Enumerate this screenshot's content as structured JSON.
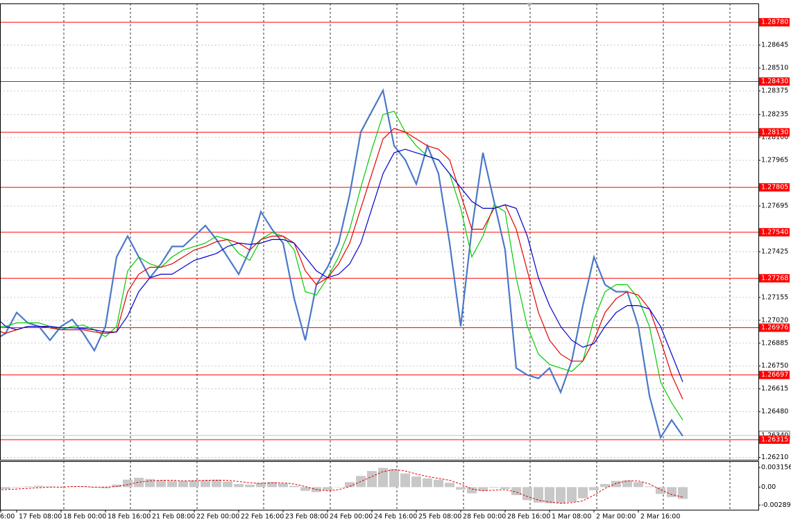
{
  "chart_data": [
    {
      "type": "line",
      "categories": [
        "6:00",
        null,
        "17 Feb 08:00",
        null,
        null,
        null,
        "18 Feb 00:00",
        null,
        null,
        null,
        "18 Feb 16:00",
        null,
        null,
        null,
        "21 Feb 08:00",
        null,
        null,
        null,
        "22 Feb 00:00",
        null,
        null,
        null,
        "22 Feb 16:00",
        null,
        null,
        null,
        "23 Feb 08:00",
        null,
        null,
        null,
        "24 Feb 00:00",
        null,
        null,
        null,
        "24 Feb 16:00",
        null,
        null,
        null,
        "25 Feb 08:00",
        null,
        null,
        null,
        "28 Feb 00:00",
        null,
        null,
        null,
        "28 Feb 16:00",
        null,
        null,
        null,
        "1 Mar 08:00",
        null,
        null,
        null,
        "2 Mar 00:00",
        null,
        null,
        null,
        "2 Mar 16:00",
        null,
        null,
        null,
        null
      ],
      "series": [
        {
          "color": "#4a78c8",
          "values": [
            1.26902,
            1.26943,
            1.27066,
            1.27005,
            1.26984,
            1.26902,
            1.26984,
            1.27025,
            1.26943,
            1.26841,
            1.26984,
            1.27394,
            1.27517,
            1.27394,
            1.27271,
            1.27353,
            1.27456,
            1.27456,
            1.27517,
            1.27579,
            1.27497,
            1.27394,
            1.27292,
            1.27435,
            1.27661,
            1.27558,
            1.27476,
            1.27148,
            1.26902,
            1.2723,
            1.27333,
            1.27476,
            1.27763,
            1.28132,
            1.28255,
            1.28378,
            1.2805,
            1.27968,
            1.27825,
            1.2805,
            1.27886,
            1.27476,
            1.26984,
            1.27558,
            1.28009,
            1.27722,
            1.27435,
            1.26738,
            1.26697,
            1.26677,
            1.26738,
            1.26595,
            1.26779,
            1.27107,
            1.27394,
            1.2723,
            1.27189,
            1.27189,
            1.26984,
            1.26574,
            1.26328,
            1.26431,
            1.26336
          ]
        },
        {
          "color": "#00cc00",
          "values": [
            1.26984,
            1.26984,
            1.27005,
            1.27005,
            1.27005,
            1.26984,
            1.26964,
            1.26984,
            1.26992,
            1.26964,
            1.26923,
            1.26984,
            1.27312,
            1.27394,
            1.27353,
            1.27333,
            1.27394,
            1.27435,
            1.27456,
            1.27476,
            1.27517,
            1.27497,
            1.27415,
            1.27374,
            1.27497,
            1.27538,
            1.27517,
            1.27435,
            1.27189,
            1.27169,
            1.27271,
            1.27394,
            1.27558,
            1.27804,
            1.2803,
            1.28235,
            1.28255,
            1.28132,
            1.2805,
            1.27989,
            1.27968,
            1.27886,
            1.27681,
            1.27394,
            1.27517,
            1.27702,
            1.27661,
            1.27271,
            1.26984,
            1.2682,
            1.26759,
            1.26738,
            1.26718,
            1.26779,
            1.27025,
            1.27189,
            1.2723,
            1.2723,
            1.27148,
            1.26984,
            1.26656,
            1.26533,
            1.26431
          ]
        },
        {
          "color": "#e00000",
          "values": [
            1.26964,
            1.26943,
            1.26964,
            1.26984,
            1.26984,
            1.26976,
            1.26964,
            1.26964,
            1.26964,
            1.26951,
            1.26943,
            1.26951,
            1.27189,
            1.27292,
            1.27333,
            1.27333,
            1.27353,
            1.27394,
            1.27435,
            1.27456,
            1.27484,
            1.27497,
            1.27476,
            1.27435,
            1.27497,
            1.27517,
            1.27517,
            1.27476,
            1.27312,
            1.2723,
            1.27271,
            1.27353,
            1.27476,
            1.27681,
            1.27886,
            1.28091,
            1.28153,
            1.28132,
            1.28091,
            1.2805,
            1.2803,
            1.27968,
            1.27763,
            1.27558,
            1.27558,
            1.27681,
            1.27702,
            1.27558,
            1.27312,
            1.27066,
            1.26902,
            1.2682,
            1.26779,
            1.26779,
            1.26902,
            1.27066,
            1.27148,
            1.27189,
            1.27169,
            1.27087,
            1.26902,
            1.26697,
            1.26554
          ]
        },
        {
          "color": "#0000cc",
          "values": [
            1.27046,
            1.26984,
            1.26964,
            1.26984,
            1.26984,
            1.26984,
            1.26976,
            1.26976,
            1.26972,
            1.26964,
            1.26951,
            1.26951,
            1.27046,
            1.27189,
            1.27271,
            1.27292,
            1.27292,
            1.27333,
            1.27374,
            1.27394,
            1.27415,
            1.27456,
            1.27476,
            1.27468,
            1.27476,
            1.27497,
            1.27497,
            1.27476,
            1.27394,
            1.27312,
            1.27271,
            1.27292,
            1.27353,
            1.27476,
            1.27681,
            1.27886,
            1.28009,
            1.2803,
            1.28009,
            1.27989,
            1.27968,
            1.27886,
            1.27804,
            1.27722,
            1.27681,
            1.27681,
            1.27702,
            1.27681,
            1.27517,
            1.27271,
            1.27107,
            1.26984,
            1.26902,
            1.26861,
            1.26882,
            1.26984,
            1.27066,
            1.27107,
            1.27107,
            1.27087,
            1.26984,
            1.2682,
            1.26656
          ]
        }
      ],
      "ylim": [
        1.26196,
        1.28891
      ],
      "yticks": [
        1.28645,
        {
          "value": 1.2851,
          "label": "1.28510"
        },
        1.28375,
        1.28235,
        {
          "value": 1.281,
          "label": "1.28100"
        },
        1.27965,
        1.27695,
        1.27425,
        1.27155,
        {
          "value": 1.2702,
          "label": "1.27020"
        },
        1.26885,
        {
          "value": 1.2675,
          "label": "1.26750"
        },
        1.26615,
        {
          "value": 1.2648,
          "label": "1.26480"
        },
        {
          "value": 1.2621,
          "label": "1.26210"
        }
      ],
      "grid": true,
      "current_price": {
        "value": 1.2634,
        "label": "1.26340"
      },
      "levels": {
        "color": "#ff0000",
        "values": [
          1.2878,
          1.2843,
          1.2813,
          1.27805,
          1.2754,
          1.27268,
          1.26976,
          1.26697,
          1.26315
        ],
        "value_labels": [
          "1.28780",
          "1.28430",
          "1.28130",
          "1.27805",
          "1.27540",
          "1.27268",
          "1.26976",
          "1.26697",
          "1.26315"
        ]
      }
    },
    {
      "type": "bar",
      "values": [
        -0.0004,
        -0.0003,
        -0.0001,
        0.0001,
        0.0002,
        0.0001,
        0,
        0.0001,
        0.0001,
        -0.0001,
        -0.0002,
        0.0004,
        0.0012,
        0.0015,
        0.0013,
        0.0011,
        0.001,
        0.001,
        0.0011,
        0.0011,
        0.0012,
        0.0009,
        0.0005,
        0.0004,
        0.0007,
        0.0008,
        0.0006,
        0.0002,
        -0.0006,
        -0.0008,
        -0.0005,
        0,
        0.0008,
        0.0018,
        0.0026,
        0.0031,
        0.0029,
        0.0022,
        0.0017,
        0.0014,
        0.0012,
        0.0007,
        -0.0004,
        -0.001,
        -0.0006,
        -0.0001,
        -0.0003,
        -0.0013,
        -0.0021,
        -0.0025,
        -0.0026,
        -0.0026,
        -0.0024,
        -0.0018,
        -0.0005,
        0.0005,
        0.001,
        0.0011,
        0.0008,
        0.0001,
        -0.0011,
        -0.0016,
        -0.0019
      ],
      "color": "#c8c8c8",
      "signal": {
        "color": "#e00000",
        "values": [
          -0.0005,
          -0.0004,
          -0.0003,
          -0.0002,
          -0.0001,
          0,
          0,
          0.0001,
          0.0001,
          0,
          0,
          0.0001,
          0.0004,
          0.0008,
          0.001,
          0.0011,
          0.0011,
          0.001,
          0.001,
          0.0011,
          0.0011,
          0.0011,
          0.0009,
          0.0007,
          0.0006,
          0.0007,
          0.0007,
          0.0005,
          0.0001,
          -0.0004,
          -0.0006,
          -0.0004,
          0.0001,
          0.0009,
          0.0017,
          0.0025,
          0.0028,
          0.0026,
          0.0021,
          0.0017,
          0.0014,
          0.0011,
          0.0005,
          -0.0003,
          -0.0006,
          -0.0005,
          -0.0004,
          -0.0008,
          -0.0015,
          -0.0021,
          -0.0024,
          -0.0026,
          -0.0025,
          -0.0022,
          -0.0013,
          -0.0002,
          0.0006,
          0.001,
          0.001,
          0.0005,
          -0.0004,
          -0.0012,
          -0.0016
        ]
      },
      "ylim": [
        -0.003641,
        0.004058
      ],
      "yticks": [
        0.003156,
        {
          "value": 0,
          "label": "0.00"
        },
        -0.002891
      ]
    }
  ]
}
